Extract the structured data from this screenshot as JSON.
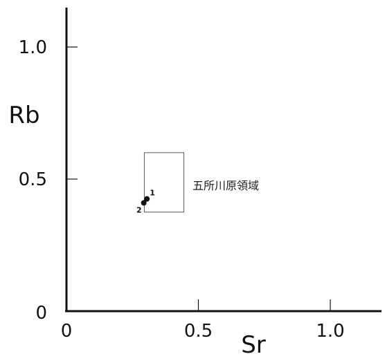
{
  "chart_data": {
    "type": "scatter",
    "xlabel": "Sr",
    "ylabel": "Rb",
    "xlim": [
      0,
      1.2
    ],
    "ylim": [
      0,
      1.15
    ],
    "x_ticks": [
      {
        "value": 0,
        "label": "0"
      },
      {
        "value": 0.5,
        "label": "0.5"
      },
      {
        "value": 1.0,
        "label": "1.0"
      }
    ],
    "y_ticks": [
      {
        "value": 0,
        "label": "0"
      },
      {
        "value": 0.5,
        "label": "0.5"
      },
      {
        "value": 1.0,
        "label": "1.0"
      }
    ],
    "grid": false,
    "points": [
      {
        "label": "1",
        "x": 0.305,
        "y": 0.425
      },
      {
        "label": "2",
        "x": 0.293,
        "y": 0.41
      }
    ],
    "region": {
      "label": "五所川原領域",
      "x_range": [
        0.295,
        0.445
      ],
      "y_range": [
        0.375,
        0.6
      ]
    }
  }
}
